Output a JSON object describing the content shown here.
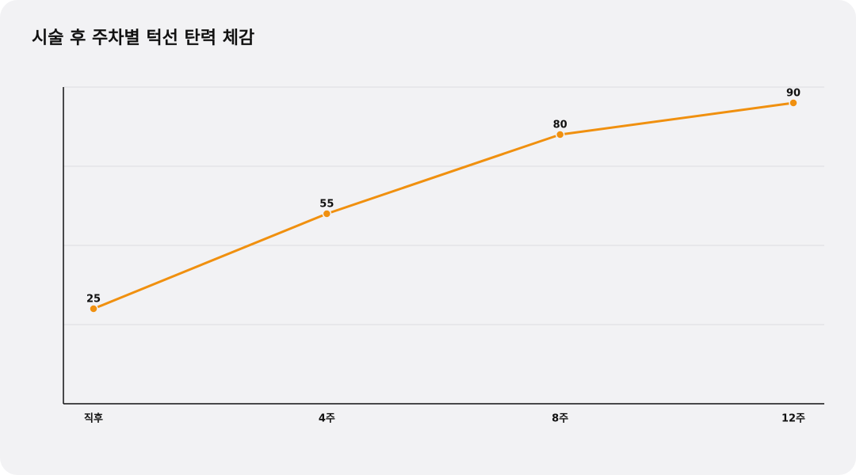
{
  "chart_data": {
    "type": "line",
    "title": "시술 후 주차별 턱선 탄력 체감",
    "categories": [
      "직후",
      "4주",
      "8주",
      "12주"
    ],
    "series": [
      {
        "name": "턱선 탄력 체감",
        "color": "#f0900f",
        "values": [
          25,
          55,
          80,
          90
        ]
      }
    ],
    "ylim": [
      -5,
      95
    ],
    "yticks": [
      20,
      45,
      70,
      95
    ],
    "grid": true,
    "show_ytick_labels": false,
    "show_legend": false
  }
}
